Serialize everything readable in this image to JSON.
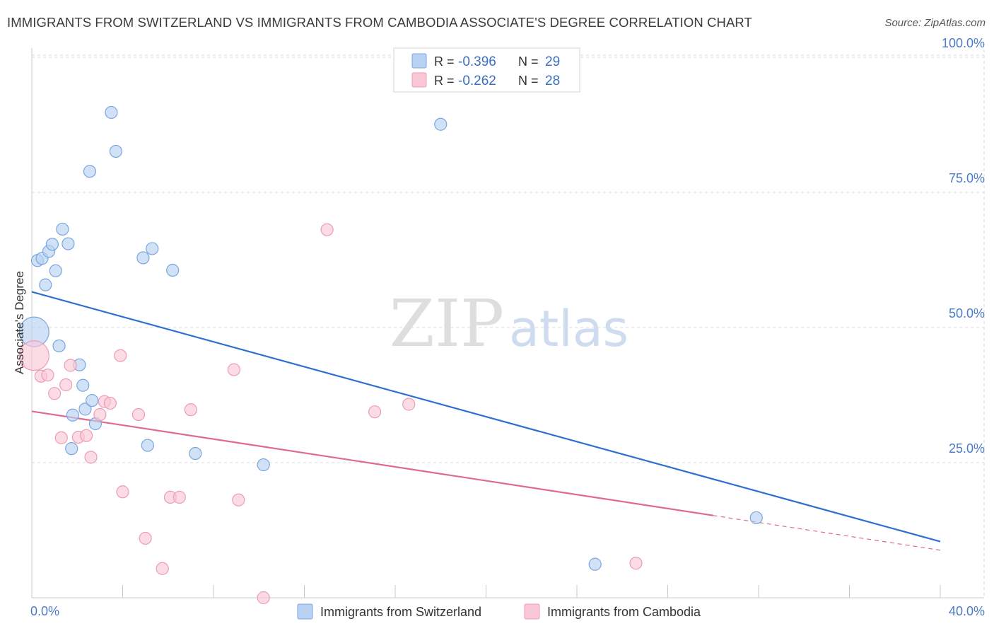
{
  "title": "IMMIGRANTS FROM SWITZERLAND VS IMMIGRANTS FROM CAMBODIA ASSOCIATE'S DEGREE CORRELATION CHART",
  "source": "Source: ZipAtlas.com",
  "watermark": {
    "zip": "ZIP",
    "atlas": "atlas"
  },
  "colors": {
    "switzerland_fill": "#b9d2f2",
    "switzerland_stroke": "#7aa6e0",
    "switzerland_line": "#2f6fcf",
    "cambodia_fill": "#f9c7d6",
    "cambodia_stroke": "#ee9cb6",
    "cambodia_line": "#e06894",
    "grid": "#d8d8d8",
    "tick_label": "#4a7cc9"
  },
  "legend_top": {
    "r_label": "R =",
    "n_label": "N =",
    "rows": [
      {
        "r": "-0.396",
        "n": "29"
      },
      {
        "r": "-0.262",
        "n": "28"
      }
    ]
  },
  "chart_data": {
    "type": "scatter",
    "xlabel": "",
    "ylabel": "Associate's Degree",
    "xlim": [
      0,
      40
    ],
    "ylim": [
      0,
      100
    ],
    "x_tick_labels": [
      "0.0%",
      "40.0%"
    ],
    "y_ticks": [
      25,
      50,
      75,
      100
    ],
    "y_tick_labels": [
      "25.0%",
      "50.0%",
      "75.0%",
      "100.0%"
    ],
    "series": [
      {
        "name": "Immigrants from Switzerland",
        "r": -0.396,
        "n": 29,
        "trend": {
          "x0": 0,
          "y0": 56.6,
          "x1": 40,
          "y1": 10.4,
          "solid_to": 40
        },
        "points": [
          {
            "x": 0.1,
            "y": 49.2,
            "big": true
          },
          {
            "x": 0.25,
            "y": 62.4
          },
          {
            "x": 0.45,
            "y": 62.8
          },
          {
            "x": 0.6,
            "y": 57.9
          },
          {
            "x": 0.75,
            "y": 64.1
          },
          {
            "x": 0.9,
            "y": 65.4
          },
          {
            "x": 1.05,
            "y": 60.5
          },
          {
            "x": 1.2,
            "y": 46.6
          },
          {
            "x": 1.35,
            "y": 68.2
          },
          {
            "x": 1.6,
            "y": 65.5
          },
          {
            "x": 1.75,
            "y": 27.6
          },
          {
            "x": 1.8,
            "y": 33.8
          },
          {
            "x": 2.1,
            "y": 43.1
          },
          {
            "x": 2.25,
            "y": 39.3
          },
          {
            "x": 2.35,
            "y": 34.9
          },
          {
            "x": 2.55,
            "y": 78.9
          },
          {
            "x": 2.65,
            "y": 36.5
          },
          {
            "x": 2.8,
            "y": 32.2
          },
          {
            "x": 3.5,
            "y": 89.8
          },
          {
            "x": 3.7,
            "y": 82.6
          },
          {
            "x": 4.9,
            "y": 62.9
          },
          {
            "x": 5.1,
            "y": 28.2
          },
          {
            "x": 5.3,
            "y": 64.6
          },
          {
            "x": 6.2,
            "y": 60.6
          },
          {
            "x": 7.2,
            "y": 26.7
          },
          {
            "x": 10.2,
            "y": 24.6
          },
          {
            "x": 18.0,
            "y": 87.6
          },
          {
            "x": 24.8,
            "y": 6.2
          },
          {
            "x": 31.9,
            "y": 14.8
          }
        ]
      },
      {
        "name": "Immigrants from Cambodia",
        "r": -0.262,
        "n": 28,
        "trend": {
          "x0": 0,
          "y0": 34.5,
          "x1": 40,
          "y1": 8.8,
          "solid_to": 30
        },
        "points": [
          {
            "x": 0.1,
            "y": 44.8,
            "big": true
          },
          {
            "x": 0.4,
            "y": 41.0
          },
          {
            "x": 0.7,
            "y": 41.2
          },
          {
            "x": 1.0,
            "y": 37.8
          },
          {
            "x": 1.3,
            "y": 29.6
          },
          {
            "x": 1.5,
            "y": 39.4
          },
          {
            "x": 1.7,
            "y": 43.0
          },
          {
            "x": 2.05,
            "y": 29.7
          },
          {
            "x": 2.4,
            "y": 30.0
          },
          {
            "x": 2.6,
            "y": 26.0
          },
          {
            "x": 3.0,
            "y": 33.9
          },
          {
            "x": 3.2,
            "y": 36.3
          },
          {
            "x": 3.45,
            "y": 36.0
          },
          {
            "x": 3.9,
            "y": 44.8
          },
          {
            "x": 4.0,
            "y": 19.6
          },
          {
            "x": 4.7,
            "y": 33.9
          },
          {
            "x": 5.0,
            "y": 11.0
          },
          {
            "x": 5.75,
            "y": 5.4
          },
          {
            "x": 6.1,
            "y": 18.6
          },
          {
            "x": 6.5,
            "y": 18.6
          },
          {
            "x": 7.0,
            "y": 34.8
          },
          {
            "x": 8.9,
            "y": 42.2
          },
          {
            "x": 9.1,
            "y": 18.1
          },
          {
            "x": 10.2,
            "y": 0.0
          },
          {
            "x": 13.0,
            "y": 68.1
          },
          {
            "x": 15.1,
            "y": 34.4
          },
          {
            "x": 16.6,
            "y": 35.8
          },
          {
            "x": 26.6,
            "y": 6.4
          }
        ]
      }
    ],
    "legend": [
      "Immigrants from Switzerland",
      "Immigrants from Cambodia"
    ],
    "legend_position": "bottom-center"
  }
}
